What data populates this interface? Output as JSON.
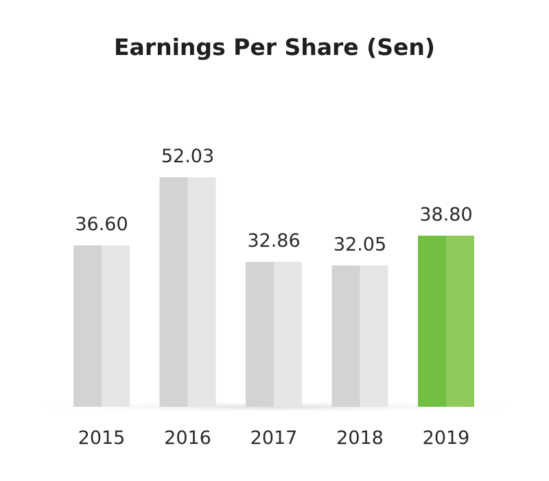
{
  "chart_data": {
    "type": "bar",
    "title": "Earnings Per Share (Sen)",
    "xlabel": "",
    "ylabel": "",
    "categories": [
      "2015",
      "2016",
      "2017",
      "2018",
      "2019"
    ],
    "values": [
      36.6,
      52.03,
      32.86,
      32.05,
      38.8
    ],
    "value_labels": [
      "36.60",
      "52.03",
      "32.86",
      "32.05",
      "38.80"
    ],
    "ylim": [
      0,
      60
    ],
    "grid": false,
    "legend": "none",
    "highlight_index": 4
  },
  "colors": {
    "default_bar_left": "#d2d3d5",
    "default_bar_right": "#e6e6e8",
    "highlight_bar_left": "#72bf44",
    "highlight_bar_right": "#8ec95c",
    "text": "#2a2a2a",
    "title": "#1f1f1f"
  }
}
